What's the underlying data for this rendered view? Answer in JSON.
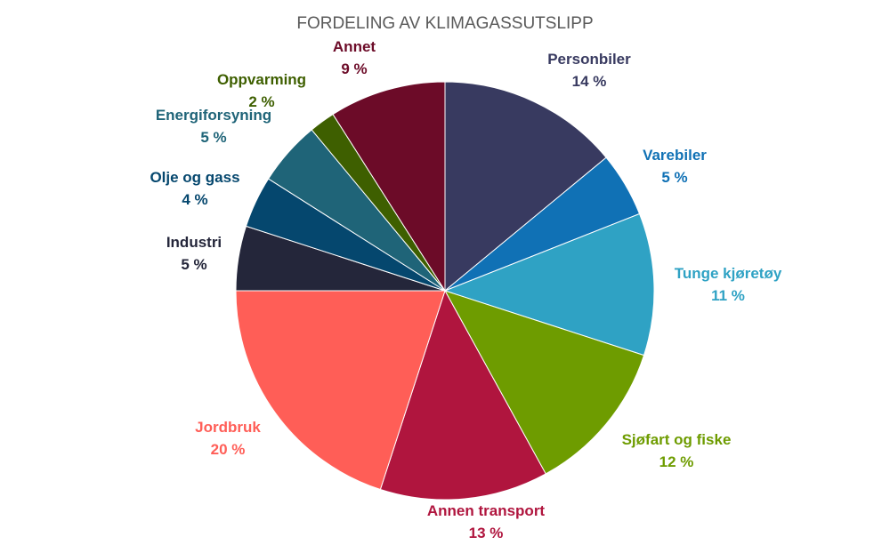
{
  "chart_data": {
    "type": "pie",
    "title": "FORDELING AV KLIMAGASSUTSLIPP",
    "start_angle_deg": 0,
    "direction": "clockwise",
    "slices": [
      {
        "label": "Personbiler",
        "value": 14,
        "value_label": "14 %",
        "color": "#383A60"
      },
      {
        "label": "Varebiler",
        "value": 5,
        "value_label": "5 %",
        "color": "#1071B5"
      },
      {
        "label": "Tunge kjøretøy",
        "value": 11,
        "value_label": "11 %",
        "color": "#2FA2C4"
      },
      {
        "label": "Sjøfart og fiske",
        "value": 12,
        "value_label": "12 %",
        "color": "#6E9C00"
      },
      {
        "label": "Annen transport",
        "value": 13,
        "value_label": "13 %",
        "color": "#B0153E"
      },
      {
        "label": "Jordbruk",
        "value": 20,
        "value_label": "20 %",
        "color": "#FF5E57"
      },
      {
        "label": "Industri",
        "value": 5,
        "value_label": "5 %",
        "color": "#24263A"
      },
      {
        "label": "Olje og gass",
        "value": 4,
        "value_label": "4 %",
        "color": "#05476E"
      },
      {
        "label": "Energiforsyning",
        "value": 5,
        "value_label": "5 %",
        "color": "#1F6478"
      },
      {
        "label": "Oppvarming",
        "value": 2,
        "value_label": "2 %",
        "color": "#3E5F00"
      },
      {
        "label": "Annet",
        "value": 9,
        "value_label": "9 %",
        "color": "#6C0B28"
      }
    ]
  }
}
